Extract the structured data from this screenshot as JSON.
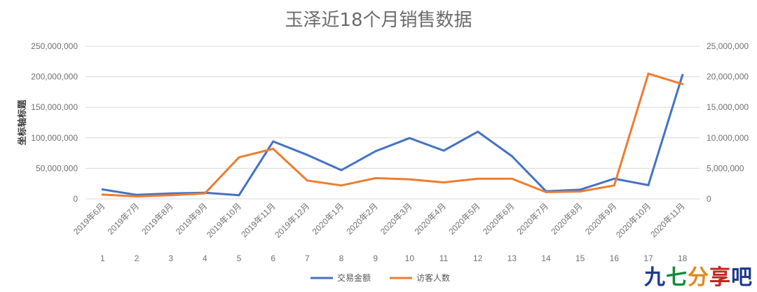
{
  "chart_data": {
    "type": "line",
    "title": "玉泽近18个月销售数据",
    "ylabel": "坐标轴标题",
    "ylim_left": [
      0,
      250000000
    ],
    "ylim_right": [
      0,
      25000000
    ],
    "left_ticks": [
      "0",
      "50,000,000",
      "100,000,000",
      "150,000,000",
      "200,000,000",
      "250,000,000"
    ],
    "right_ticks": [
      "0",
      "5,000,000",
      "10,000,000",
      "15,000,000",
      "20,000,000",
      "25,000,000"
    ],
    "categories": [
      "2019年6月",
      "2019年7月",
      "2019年8月",
      "2019年9月",
      "2019年10月",
      "2019年11月",
      "2019年12月",
      "2020年1月",
      "2020年2月",
      "2020年3月",
      "2020年4月",
      "2020年5月",
      "2020年6月",
      "2020年7月",
      "2020年8月",
      "2020年9月",
      "2020年10月",
      "2020年11月"
    ],
    "index_labels": [
      "1",
      "2",
      "3",
      "4",
      "5",
      "6",
      "7",
      "8",
      "9",
      "10",
      "11",
      "12",
      "13",
      "14",
      "15",
      "16",
      "17",
      "18"
    ],
    "grid": true,
    "legend": "bottom",
    "series": [
      {
        "name": "交易金额",
        "axis": "left",
        "color": "#4472C4",
        "values": [
          15500000,
          6500000,
          9000000,
          10000000,
          6000000,
          94000000,
          72000000,
          47000000,
          78000000,
          99500000,
          79000000,
          110000000,
          70000000,
          12500000,
          15000000,
          33000000,
          22500000,
          203000000
        ]
      },
      {
        "name": "访客人数",
        "axis": "right",
        "color": "#ED7D31",
        "values": [
          700000,
          400000,
          600000,
          900000,
          6800000,
          8200000,
          3000000,
          2200000,
          3400000,
          3200000,
          2700000,
          3300000,
          3300000,
          1100000,
          1200000,
          2200000,
          20500000,
          18800000
        ]
      }
    ]
  },
  "watermark": {
    "chars": [
      "九",
      "七",
      "分",
      "享",
      "吧"
    ]
  }
}
